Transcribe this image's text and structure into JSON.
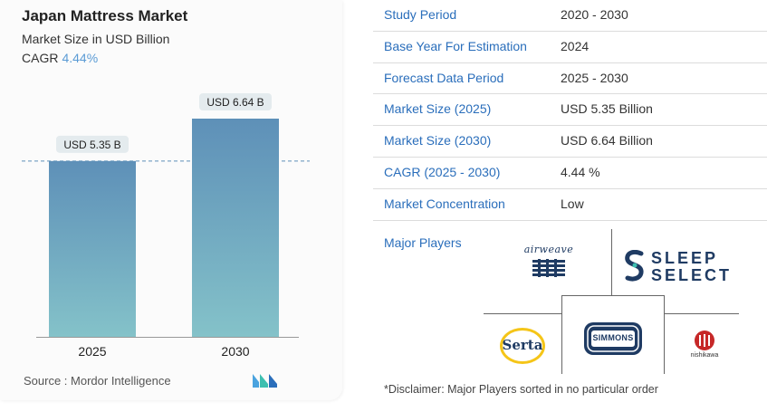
{
  "chart_data": {
    "type": "bar",
    "title": "Japan Mattress Market",
    "subtitle": "Market Size in USD Billion",
    "cagr_label": "CAGR",
    "cagr_value": "4.44%",
    "categories": [
      "2025",
      "2030"
    ],
    "values": [
      5.35,
      6.64
    ],
    "data_labels": [
      "USD 5.35 B",
      "USD 6.64 B"
    ],
    "ylim": [
      0,
      6.64
    ],
    "grid": false,
    "reference_line_value": 5.35,
    "bar_gradient_colors": [
      "#5e90b8",
      "#84c2c9"
    ]
  },
  "source": "Source :  Mordor Intelligence",
  "table": {
    "rows": [
      {
        "key": "Study Period",
        "value": "2020 - 2030"
      },
      {
        "key": "Base Year For Estimation",
        "value": "2024"
      },
      {
        "key": "Forecast Data Period",
        "value": "2025 - 2030"
      },
      {
        "key": "Market Size (2025)",
        "value": "USD 5.35 Billion"
      },
      {
        "key": "Market Size (2030)",
        "value": "USD 6.64 Billion"
      },
      {
        "key": "CAGR (2025 - 2030)",
        "value": "4.44 %"
      },
      {
        "key": "Market Concentration",
        "value": "Low"
      }
    ]
  },
  "players": {
    "label": "Major Players",
    "logos": {
      "airweave": "airweave",
      "sleep_select_top": "SLEEP",
      "sleep_select_bottom": "SELECT",
      "serta": "Serta",
      "simmons": "SIMMONS",
      "nishikawa": "nishikawa"
    }
  },
  "disclaimer": "*Disclaimer: Major Players sorted in no particular order",
  "colors": {
    "accent_blue": "#2a6ebb",
    "cagr_blue": "#5b9bd5",
    "logo_teal": "#3dbfb0"
  }
}
